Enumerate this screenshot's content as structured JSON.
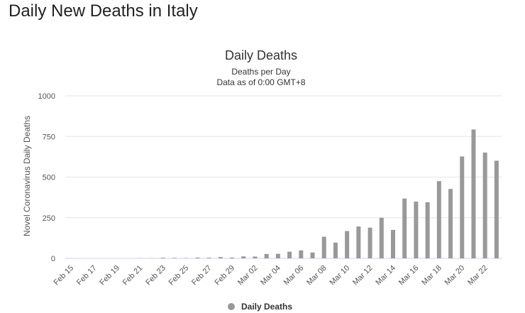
{
  "page": {
    "title": "Daily New Deaths in Italy"
  },
  "chart_data": {
    "type": "bar",
    "title": "Daily Deaths",
    "subtitle_lines": [
      "Deaths per Day",
      "Data as of 0:00 GMT+8"
    ],
    "xlabel": "",
    "ylabel": "Novel Coronavirus Daily Deaths",
    "ylim": [
      0,
      1000
    ],
    "yticks": [
      0,
      250,
      500,
      750,
      1000
    ],
    "categories": [
      "Feb 15",
      "Feb 16",
      "Feb 17",
      "Feb 18",
      "Feb 19",
      "Feb 20",
      "Feb 21",
      "Feb 22",
      "Feb 23",
      "Feb 24",
      "Feb 25",
      "Feb 26",
      "Feb 27",
      "Feb 28",
      "Feb 29",
      "Mar 01",
      "Mar 02",
      "Mar 03",
      "Mar 04",
      "Mar 05",
      "Mar 06",
      "Mar 07",
      "Mar 08",
      "Mar 09",
      "Mar 10",
      "Mar 11",
      "Mar 12",
      "Mar 13",
      "Mar 14",
      "Mar 15",
      "Mar 16",
      "Mar 17",
      "Mar 18",
      "Mar 19",
      "Mar 20",
      "Mar 21",
      "Mar 22",
      "Mar 23"
    ],
    "xtick_labels": [
      "Feb 15",
      "Feb 17",
      "Feb 19",
      "Feb 21",
      "Feb 23",
      "Feb 25",
      "Feb 27",
      "Feb 29",
      "Mar 02",
      "Mar 04",
      "Mar 06",
      "Mar 08",
      "Mar 10",
      "Mar 12",
      "Mar 14",
      "Mar 16",
      "Mar 18",
      "Mar 20",
      "Mar 22"
    ],
    "series": [
      {
        "name": "Daily Deaths",
        "color": "#999999",
        "values": [
          0,
          0,
          0,
          0,
          0,
          0,
          1,
          1,
          4,
          3,
          2,
          5,
          4,
          8,
          5,
          12,
          11,
          27,
          28,
          41,
          49,
          36,
          133,
          97,
          168,
          196,
          189,
          250,
          175,
          368,
          349,
          345,
          475,
          427,
          627,
          793,
          651,
          601
        ]
      }
    ],
    "grid": true,
    "legend_position": "bottom-center"
  }
}
